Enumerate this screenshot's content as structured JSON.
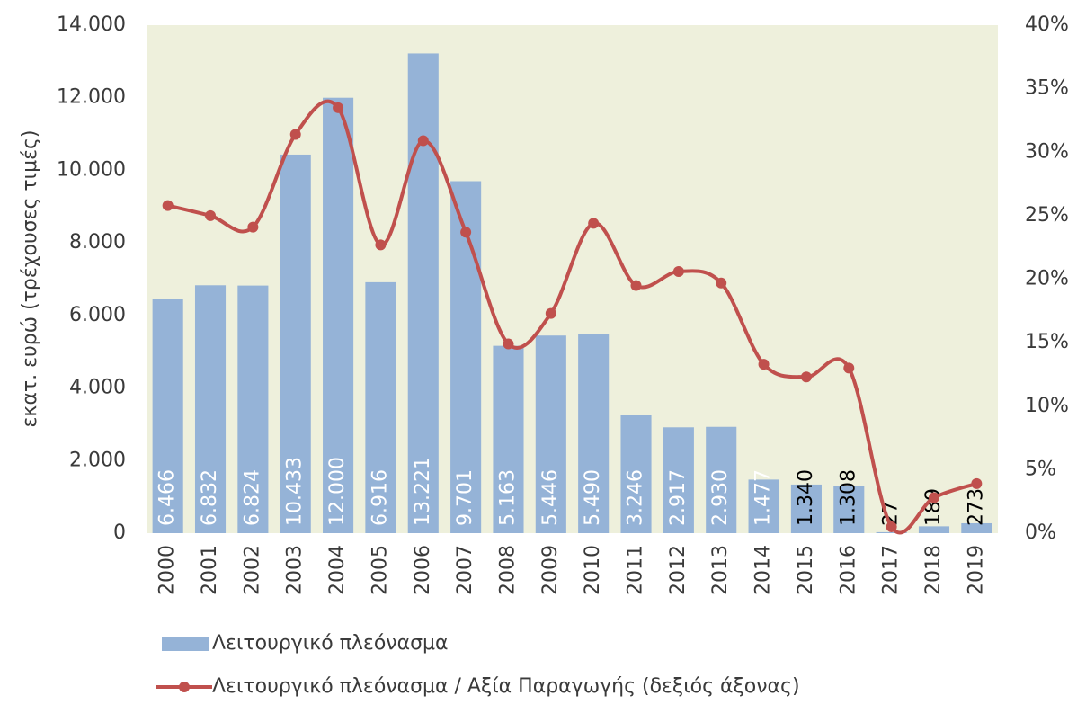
{
  "chart_data": {
    "type": "bar-line",
    "y_axis_label": "εκατ. ευρώ (τρέχουσες τιμές)",
    "categories": [
      "2000",
      "2001",
      "2002",
      "2003",
      "2004",
      "2005",
      "2006",
      "2007",
      "2008",
      "2009",
      "2010",
      "2011",
      "2012",
      "2013",
      "2014",
      "2015",
      "2016",
      "2017",
      "2018",
      "2019"
    ],
    "series": [
      {
        "name": "Λειτουργικό πλεόνασμα",
        "type": "bar",
        "color": "#95b3d7",
        "values": [
          6466,
          6832,
          6824,
          10433,
          12000,
          6916,
          13221,
          9701,
          5163,
          5446,
          5490,
          3246,
          2917,
          2930,
          1477,
          1340,
          1308,
          27,
          189,
          273
        ],
        "value_labels": [
          "6.466",
          "6.832",
          "6.824",
          "10.433",
          "12.000",
          "6.916",
          "13.221",
          "9.701",
          "5.163",
          "5.446",
          "5.490",
          "3.246",
          "2.917",
          "2.930",
          "1.477",
          "1.340",
          "1.308",
          "27",
          "189",
          "273"
        ]
      },
      {
        "name": "Λειτουργικό πλεόνασμα / Αξία Παραγωγής (δεξιός άξονας)",
        "type": "line",
        "axis": "y2",
        "color": "#c0504d",
        "values": [
          25.8,
          25.0,
          24.1,
          31.4,
          33.5,
          22.7,
          30.9,
          23.7,
          14.9,
          17.3,
          24.4,
          19.5,
          20.6,
          19.7,
          13.3,
          12.3,
          13.0,
          0.5,
          2.8,
          3.9
        ]
      }
    ],
    "ylim": [
      0,
      14000
    ],
    "yticks": [
      0,
      {
        "value": 2000,
        "label": "2.000"
      },
      {
        "value": 4000,
        "label": "4.000"
      },
      {
        "value": 6000,
        "label": "6.000"
      },
      {
        "value": 8000,
        "label": "8.000"
      },
      {
        "value": 10000,
        "label": "10.000"
      },
      {
        "value": 12000,
        "label": "12.000"
      },
      {
        "value": 14000,
        "label": "14.000"
      }
    ],
    "y2lim": [
      0,
      40
    ],
    "y2ticks": [
      {
        "value": 0,
        "label": "0%"
      },
      {
        "value": 5,
        "label": "5%"
      },
      {
        "value": 10,
        "label": "10%"
      },
      {
        "value": 15,
        "label": "15%"
      },
      {
        "value": 20,
        "label": "20%"
      },
      {
        "value": 25,
        "label": "25%"
      },
      {
        "value": 30,
        "label": "30%"
      },
      {
        "value": 35,
        "label": "35%"
      },
      {
        "value": 40,
        "label": "40%"
      }
    ],
    "plot_background": "#eef0dc"
  }
}
